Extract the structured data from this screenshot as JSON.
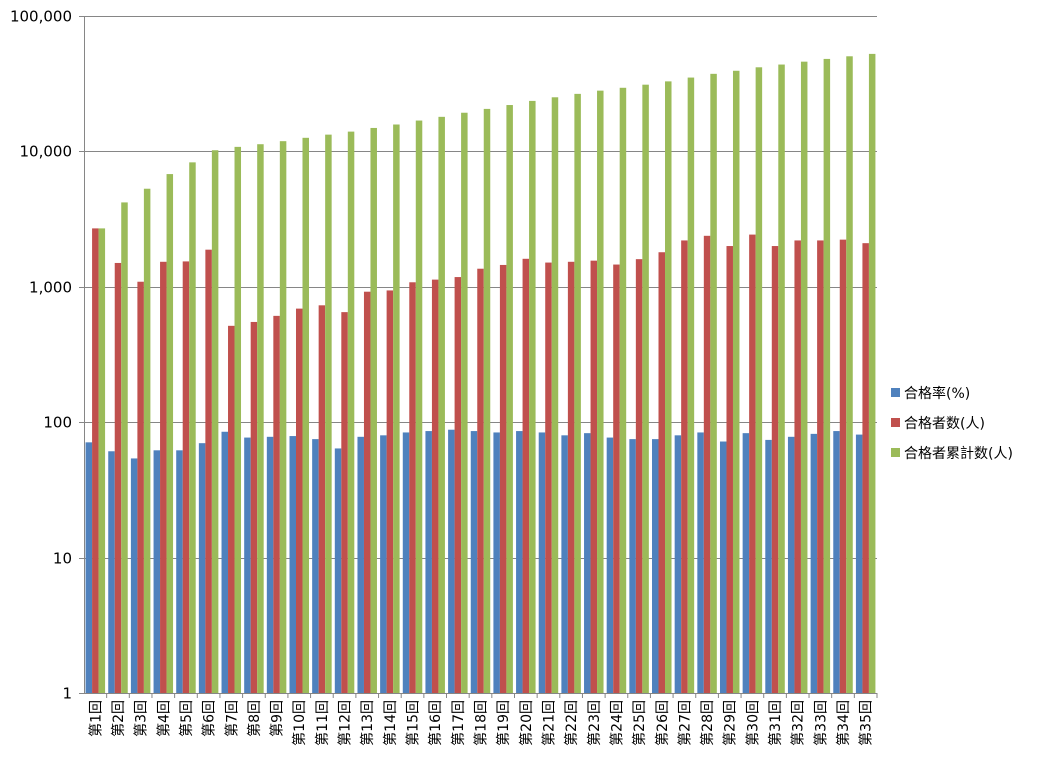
{
  "chart_data": {
    "type": "bar",
    "y_scale": "log",
    "ylim": [
      1,
      100000
    ],
    "y_ticks": [
      1,
      10,
      100,
      1000,
      10000,
      100000
    ],
    "y_tick_labels": [
      "1",
      "10",
      "100",
      "1,000",
      "10,000",
      "100,000"
    ],
    "grid": true,
    "legend_position": "right",
    "categories": [
      "第1回",
      "第2回",
      "第3回",
      "第4回",
      "第5回",
      "第6回",
      "第7回",
      "第8回",
      "第9回",
      "第10回",
      "第11回",
      "第12回",
      "第13回",
      "第14回",
      "第15回",
      "第16回",
      "第17回",
      "第18回",
      "第19回",
      "第20回",
      "第21回",
      "第22回",
      "第23回",
      "第24回",
      "第25回",
      "第26回",
      "第27回",
      "第28回",
      "第29回",
      "第30回",
      "第31回",
      "第32回",
      "第33回",
      "第34回",
      "第35回"
    ],
    "series": [
      {
        "name": "合格率(%)",
        "color": "#4f81bd",
        "values": [
          71,
          61,
          54,
          62,
          62,
          70,
          85,
          77,
          78,
          79,
          75,
          64,
          78,
          80,
          84,
          86,
          88,
          86,
          84,
          86,
          84,
          80,
          83,
          77,
          75,
          75,
          80,
          84,
          72,
          83,
          74,
          78,
          82,
          86,
          81
        ]
      },
      {
        "name": "合格者数(人)",
        "color": "#c0504d",
        "values": [
          2700,
          1500,
          1090,
          1530,
          1540,
          1880,
          515,
          550,
          610,
          690,
          730,
          650,
          920,
          940,
          1080,
          1130,
          1180,
          1360,
          1450,
          1610,
          1510,
          1530,
          1560,
          1460,
          1600,
          1800,
          2200,
          2380,
          2000,
          2430,
          2000,
          2200,
          2200,
          2230,
          2100
        ]
      },
      {
        "name": "合格者累計数(人)",
        "color": "#9bbb59",
        "values": [
          2700,
          4200,
          5300,
          6800,
          8300,
          10200,
          10800,
          11300,
          11900,
          12600,
          13300,
          14000,
          14900,
          15800,
          16900,
          18000,
          19300,
          20600,
          22000,
          23600,
          25100,
          26600,
          28100,
          29500,
          31100,
          32900,
          35100,
          37400,
          39400,
          41800,
          43800,
          46000,
          48200,
          50400,
          52500
        ]
      }
    ]
  }
}
